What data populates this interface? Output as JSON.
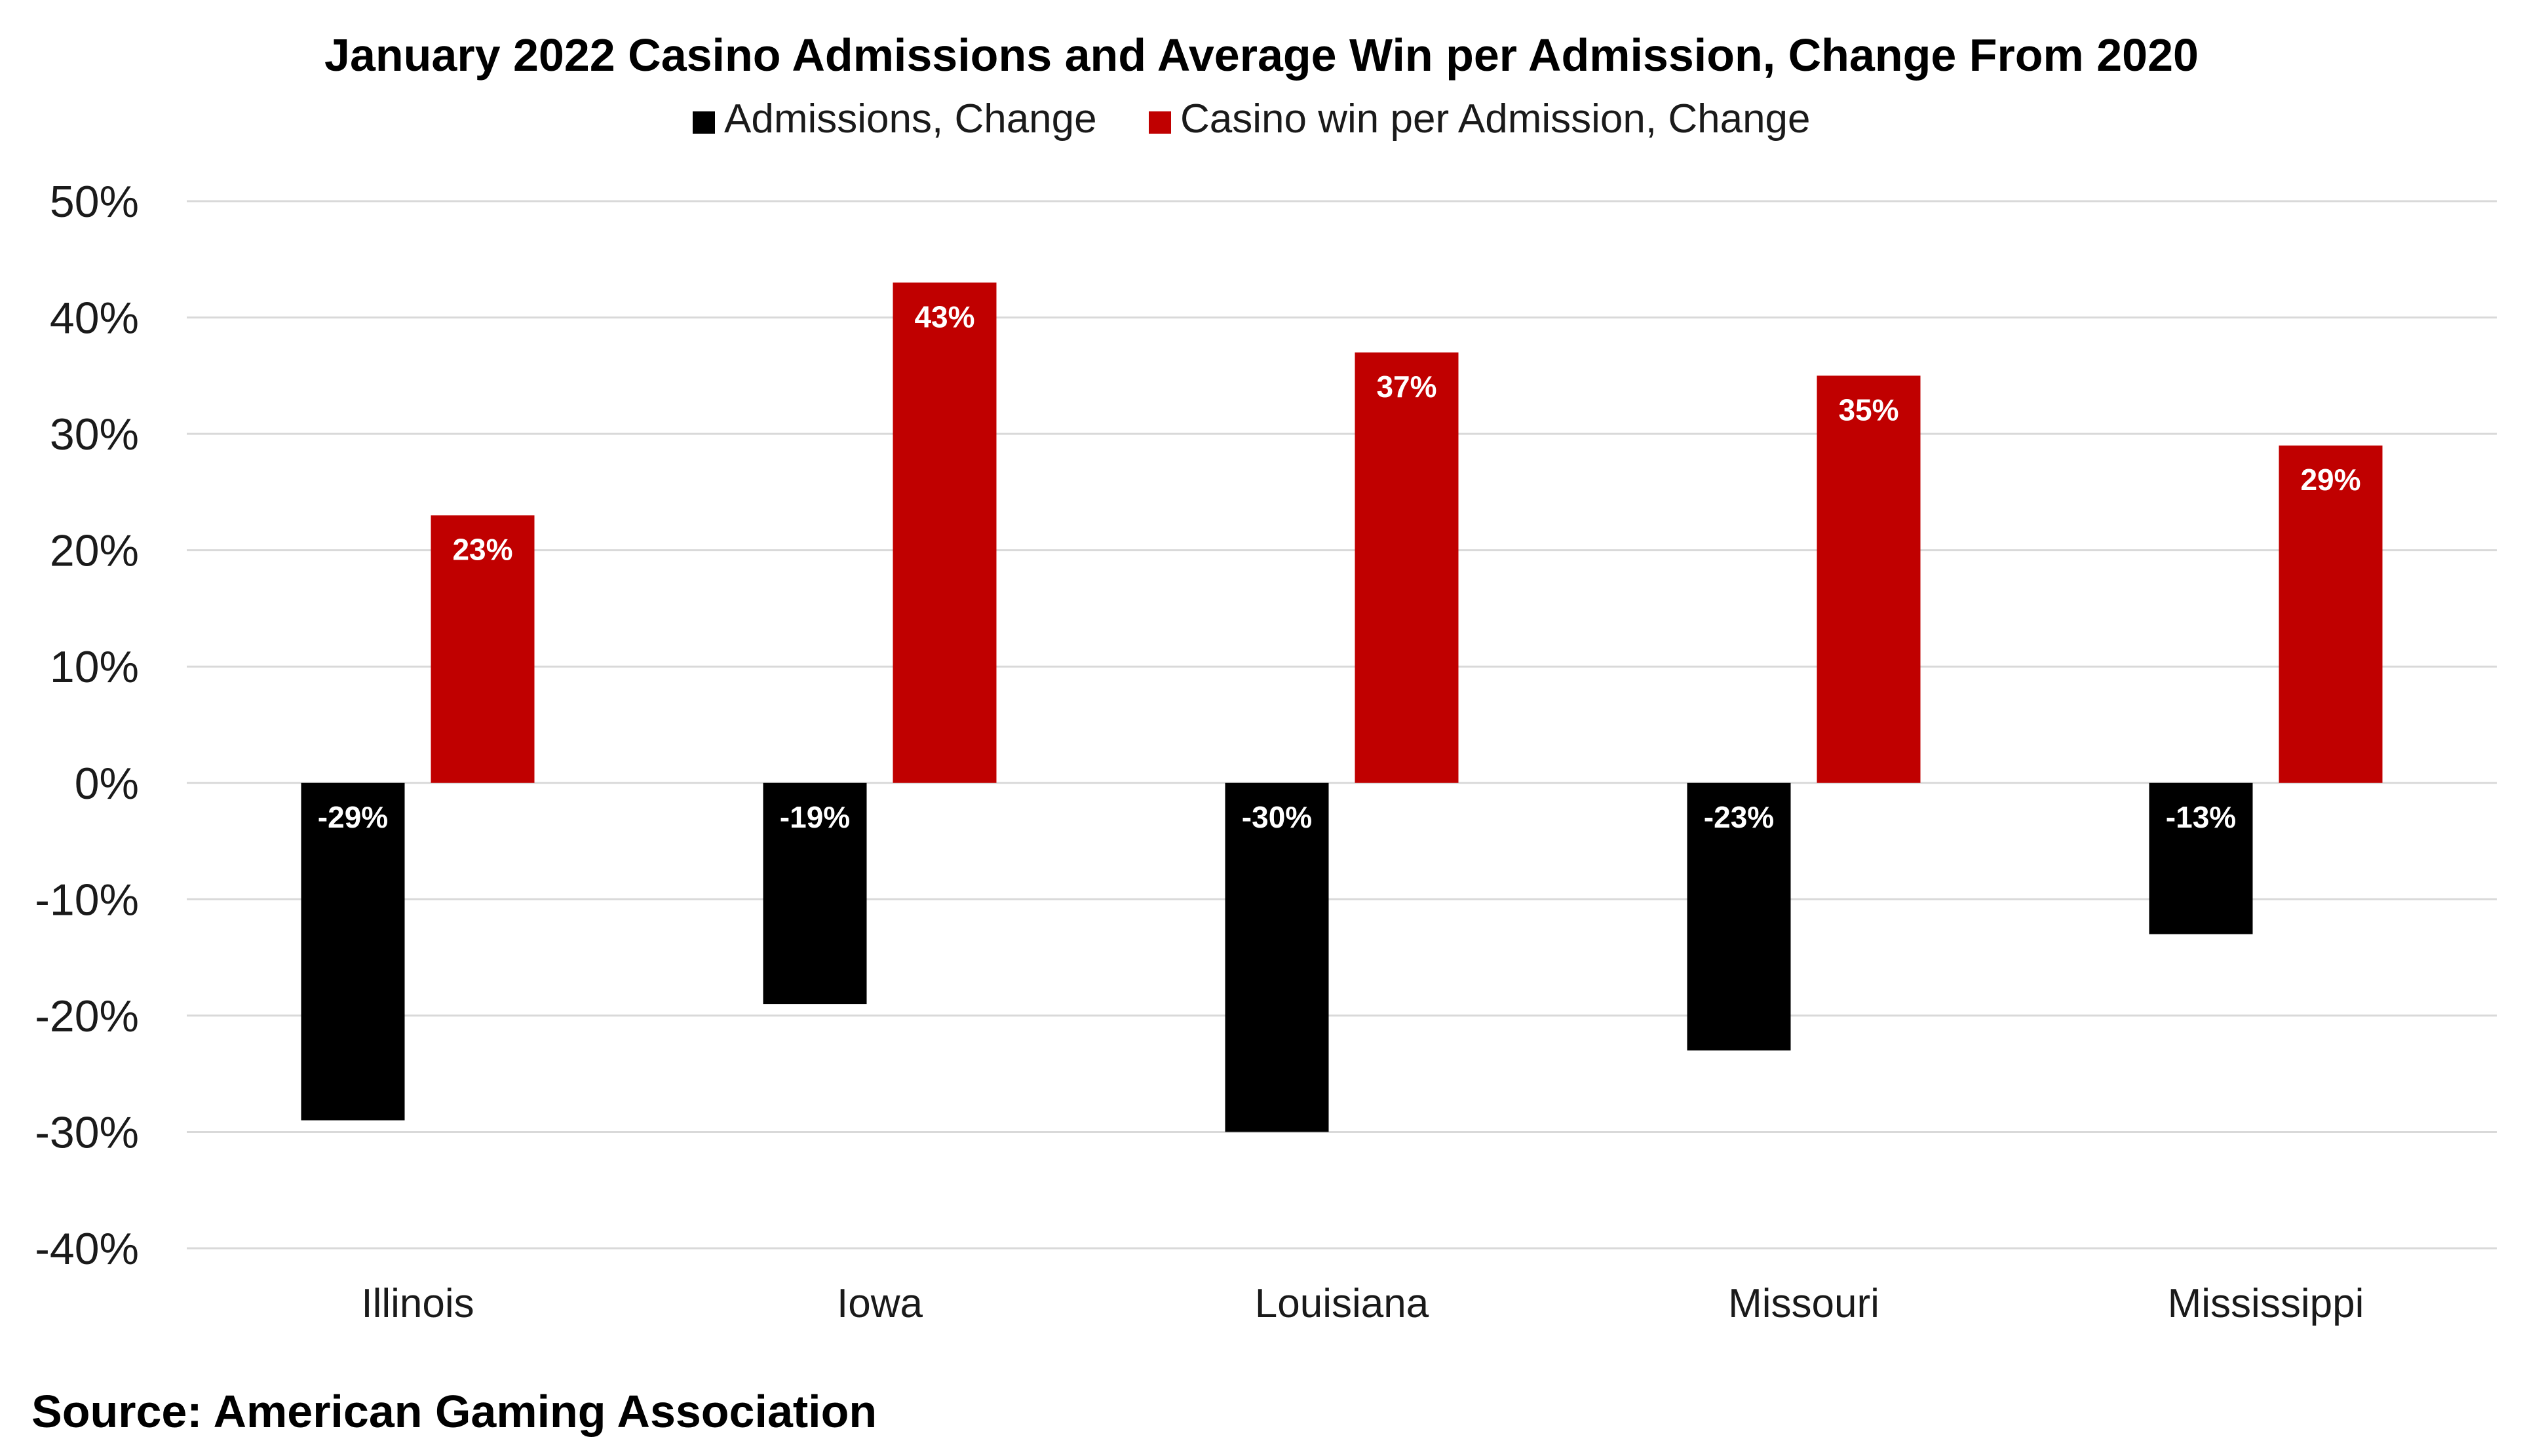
{
  "chart_data": {
    "type": "bar",
    "title": "January 2022 Casino Admissions and Average Win per Admission, Change From 2020",
    "categories": [
      "Illinois",
      "Iowa",
      "Louisiana",
      "Missouri",
      "Mississippi"
    ],
    "series": [
      {
        "name": "Admissions, Change",
        "color": "#000000",
        "values": [
          -29,
          -19,
          -30,
          -23,
          -13
        ],
        "labels": [
          "-29%",
          "-19%",
          "-30%",
          "-23%",
          "-13%"
        ]
      },
      {
        "name": "Casino win per Admission, Change",
        "color": "#c00000",
        "values": [
          23,
          43,
          37,
          35,
          29
        ],
        "labels": [
          "23%",
          "43%",
          "37%",
          "35%",
          "29%"
        ]
      }
    ],
    "ylim": [
      -40,
      50
    ],
    "yticks": [
      50,
      40,
      30,
      20,
      10,
      0,
      -10,
      -20,
      -30,
      -40
    ],
    "ytick_labels": [
      "50%",
      "40%",
      "30%",
      "20%",
      "10%",
      "0%",
      "-10%",
      "-20%",
      "-30%",
      "-40%"
    ],
    "xlabel": "",
    "ylabel": "",
    "grid": true,
    "legend_position": "top-center",
    "source": "Source: American Gaming Association"
  }
}
